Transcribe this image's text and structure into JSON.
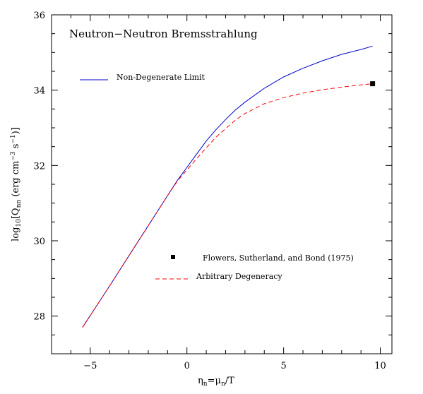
{
  "chart_data": {
    "type": "line",
    "title": "Neutron−Neutron Bremsstrahlung",
    "xlabel": "ηn=μn/T",
    "xlabel_parts": {
      "eta": "η",
      "sub1": "n",
      "eq": "=μ",
      "sub2": "n",
      "tail": "/T"
    },
    "ylabel": "log10[Qnn (erg cm−3 s−1)]",
    "ylabel_parts": {
      "log": "log",
      "sub_log": "10",
      "lbr": "[Q",
      "sub_q": "nn",
      "units": " (erg cm",
      "exp1": "−3",
      "s": " s",
      "exp2": "−1",
      "rbr": ")]"
    },
    "xlim": [
      -7,
      10.6
    ],
    "ylim": [
      27,
      36
    ],
    "x_ticks": [
      -5,
      0,
      5,
      10
    ],
    "x_tick_labels": [
      "−5",
      "0",
      "5",
      "10"
    ],
    "y_ticks": [
      28,
      30,
      32,
      34,
      36
    ],
    "y_tick_labels": [
      "28",
      "30",
      "32",
      "34",
      "36"
    ],
    "grid": false,
    "series": [
      {
        "name": "Non-Degenerate Limit",
        "color": "#0000cc",
        "style": "solid",
        "x": [
          -5.4,
          -4,
          -3,
          -2,
          -1.5,
          -1,
          -0.5,
          0,
          0.5,
          1,
          1.5,
          2,
          2.5,
          3,
          4,
          5,
          6,
          7,
          8,
          9,
          9.6
        ],
        "y": [
          27.7,
          28.8,
          29.6,
          30.4,
          30.8,
          31.2,
          31.6,
          31.95,
          32.3,
          32.65,
          32.95,
          33.22,
          33.47,
          33.68,
          34.05,
          34.35,
          34.58,
          34.78,
          34.95,
          35.08,
          35.17
        ]
      },
      {
        "name": "Arbitrary Degeneracy",
        "color": "#ff0000",
        "style": "dashed",
        "x": [
          -5.4,
          -4,
          -3,
          -2,
          -1.5,
          -1,
          -0.5,
          0,
          0.5,
          1,
          1.5,
          2,
          2.5,
          3,
          4,
          5,
          6,
          7,
          8,
          9,
          9.6
        ],
        "y": [
          27.7,
          28.8,
          29.6,
          30.4,
          30.8,
          31.2,
          31.58,
          31.88,
          32.18,
          32.47,
          32.75,
          32.98,
          33.2,
          33.38,
          33.64,
          33.8,
          33.92,
          34.01,
          34.08,
          34.14,
          34.17
        ]
      },
      {
        "name": "Flowers, Sutherland, and Bond (1975)",
        "color": "#000000",
        "style": "marker",
        "x": [
          9.6
        ],
        "y": [
          34.17
        ]
      }
    ],
    "legend": [
      {
        "label": "Non-Degenerate Limit",
        "kind": "solid",
        "color": "#0000cc",
        "placement": "upper-left"
      },
      {
        "label": "Flowers, Sutherland, and Bond (1975)",
        "kind": "square",
        "color": "#000000",
        "placement": "lower-center"
      },
      {
        "label": "Arbitrary Degeneracy",
        "kind": "dashed",
        "color": "#ff0000",
        "placement": "lower-center"
      }
    ]
  }
}
